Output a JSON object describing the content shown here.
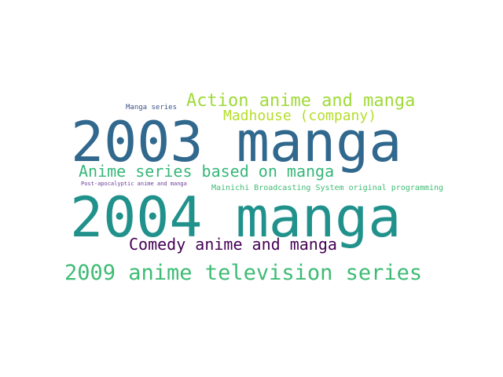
{
  "wordcloud": {
    "words": [
      {
        "text": "Manga series",
        "color": "#3b528b"
      },
      {
        "text": "Action anime and manga",
        "color": "#a0da39"
      },
      {
        "text": "Madhouse (company)",
        "color": "#b5de2b"
      },
      {
        "text": "2003 manga",
        "color": "#31688e"
      },
      {
        "text": "Anime series based on manga",
        "color": "#35b779"
      },
      {
        "text": "Post-apocalyptic anime and manga",
        "color": "#6a3d9a"
      },
      {
        "text": "Mainichi Broadcasting System original programming",
        "color": "#3ebc73"
      },
      {
        "text": "2004 manga",
        "color": "#21918c"
      },
      {
        "text": "Comedy anime and manga",
        "color": "#440154"
      },
      {
        "text": "2009 anime television series",
        "color": "#3dbc74"
      }
    ]
  }
}
